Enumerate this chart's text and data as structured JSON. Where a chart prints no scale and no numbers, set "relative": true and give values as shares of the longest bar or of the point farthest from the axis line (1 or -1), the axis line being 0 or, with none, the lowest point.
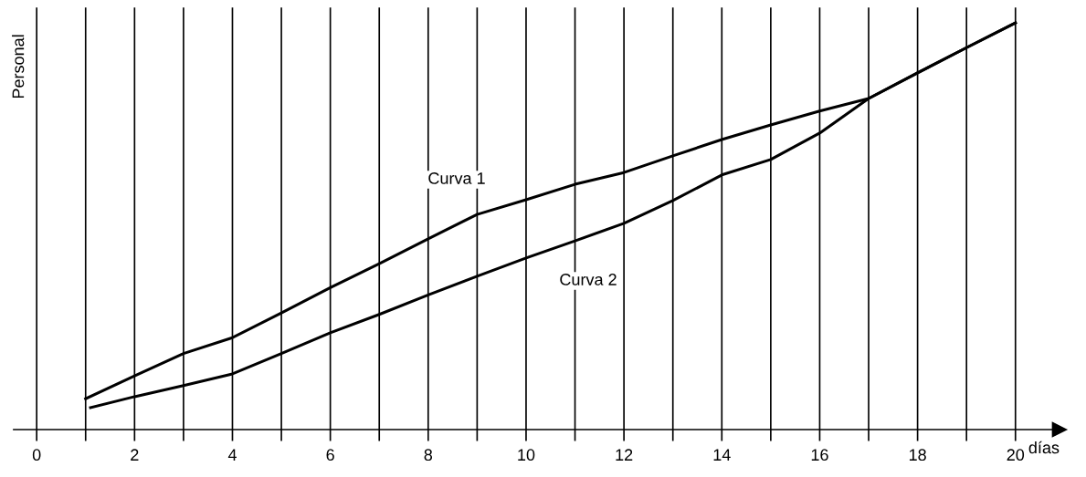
{
  "chart_data": {
    "type": "line",
    "relative": true,
    "ylabel": "Personal",
    "xlabel": "días",
    "xlim": [
      -0.47,
      20.9
    ],
    "xticks": [
      0,
      {
        "value": 1,
        "label": null
      },
      2,
      {
        "value": 3,
        "label": null
      },
      4,
      {
        "value": 5,
        "label": null
      },
      6,
      {
        "value": 7,
        "label": null
      },
      8,
      {
        "value": 9,
        "label": null
      },
      10,
      {
        "value": 11,
        "label": null
      },
      12,
      {
        "value": 13,
        "label": null
      },
      14,
      {
        "value": 15,
        "label": null
      },
      16,
      {
        "value": 17,
        "label": null
      },
      18,
      {
        "value": 19,
        "label": null
      },
      20
    ],
    "grid": "x",
    "series": [
      {
        "color": "#000000",
        "x": [
          1,
          2,
          3,
          4,
          5,
          6,
          7,
          8,
          9,
          10,
          11,
          12,
          13,
          14,
          15,
          16,
          17,
          18,
          19,
          20
        ],
        "values": [
          0.076,
          0.132,
          0.187,
          0.226,
          0.287,
          0.349,
          0.408,
          0.469,
          0.529,
          0.565,
          0.603,
          0.632,
          0.673,
          0.713,
          0.749,
          0.783,
          0.814,
          0.877,
          0.939,
          1
        ]
      },
      {
        "color": "#000000",
        "x": [
          1.1,
          2,
          3,
          4,
          5,
          6,
          7,
          8,
          9,
          10,
          11,
          12,
          13,
          14,
          15,
          16,
          17,
          18,
          19,
          20
        ],
        "values": [
          0.054,
          0.081,
          0.108,
          0.137,
          0.187,
          0.238,
          0.283,
          0.331,
          0.377,
          0.422,
          0.464,
          0.507,
          0.563,
          0.626,
          0.664,
          0.729,
          0.814,
          0.877,
          0.939,
          1
        ]
      }
    ],
    "annotations": [
      "Curva 1",
      "Curva 2"
    ]
  }
}
